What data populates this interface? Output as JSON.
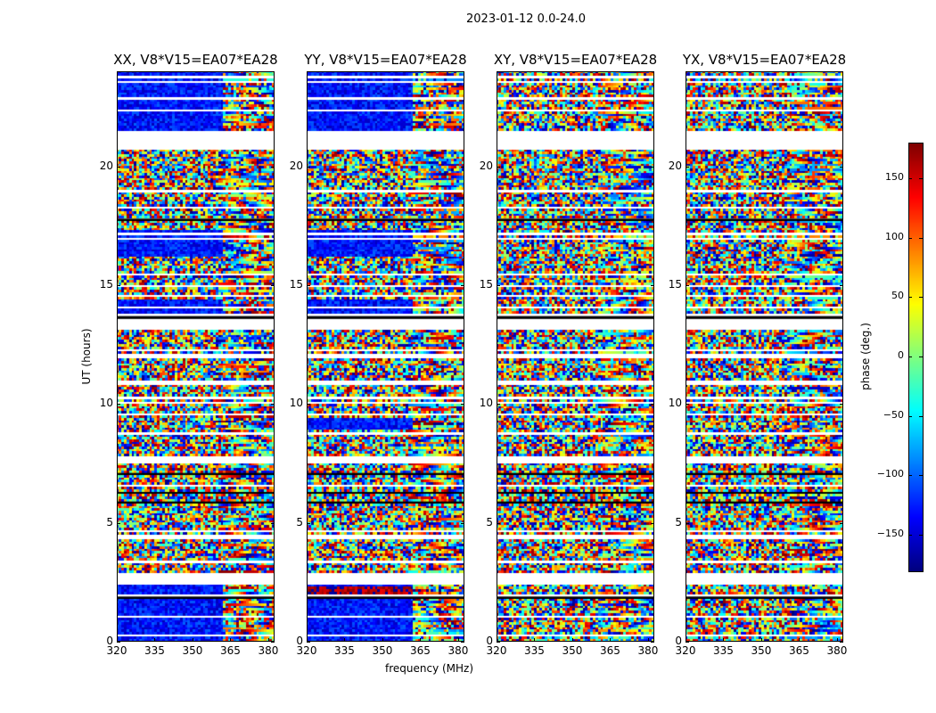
{
  "chart_data": {
    "type": "heatmap",
    "title": "2023-01-12 0.0-24.0",
    "xlabel": "frequency (MHz)",
    "ylabel": "UT (hours)",
    "xlim": [
      320,
      382.5
    ],
    "ylim": [
      0,
      24
    ],
    "xticks": [
      "320",
      "335",
      "350",
      "365",
      "380"
    ],
    "yticks": [
      "0",
      "5",
      "10",
      "15",
      "20"
    ],
    "panels": [
      {
        "title": "XX, V8*V15=EA07*EA28",
        "parallel_hand": true,
        "seed": 11
      },
      {
        "title": "YY, V8*V15=EA07*EA28",
        "parallel_hand": true,
        "seed": 23
      },
      {
        "title": "XY, V8*V15=EA07*EA28",
        "parallel_hand": false,
        "seed": 37
      },
      {
        "title": "YX, V8*V15=EA07*EA28",
        "parallel_hand": false,
        "seed": 41
      }
    ],
    "flagged_hours": [
      [
        20.75,
        21.45
      ],
      [
        13.1,
        13.6
      ],
      [
        11.9,
        12.05
      ],
      [
        10.8,
        10.95
      ],
      [
        8.7,
        8.8
      ],
      [
        7.5,
        7.65
      ],
      [
        4.3,
        4.45
      ],
      [
        2.45,
        2.75
      ],
      [
        0.2,
        0.35
      ]
    ],
    "colormap": "jet",
    "colorbar": {
      "label": "phase (deg.)",
      "range": [
        -180,
        180
      ],
      "ticks": [
        "150",
        "100",
        "50",
        "0",
        "−50",
        "−100",
        "−150"
      ],
      "tick_values": [
        150,
        100,
        50,
        0,
        -50,
        -100,
        -150
      ]
    }
  }
}
